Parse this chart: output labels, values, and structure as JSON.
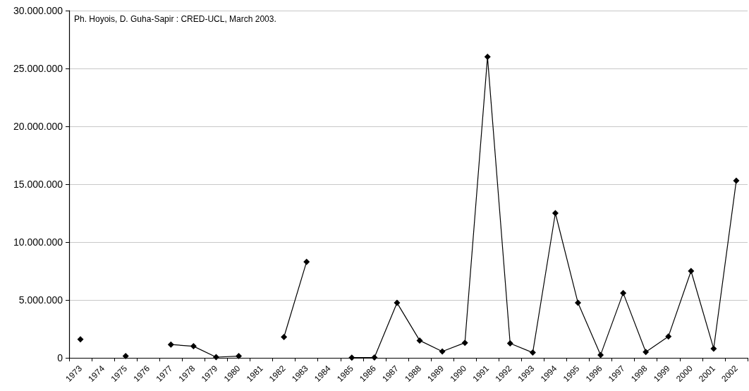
{
  "chart_data": {
    "type": "line",
    "annotations": [
      "Ph. Hoyois, D. Guha-Sapir : CRED-UCL, March 2003."
    ],
    "categories": [
      "1973",
      "1974",
      "1975",
      "1976",
      "1977",
      "1978",
      "1979",
      "1980",
      "1981",
      "1982",
      "1983",
      "1984",
      "1985",
      "1986",
      "1987",
      "1988",
      "1989",
      "1990",
      "1991",
      "1992",
      "1993",
      "1994",
      "1995",
      "1996",
      "1997",
      "1998",
      "1999",
      "2000",
      "2001",
      "2002"
    ],
    "values": [
      1600000,
      null,
      150000,
      null,
      1150000,
      1000000,
      60000,
      150000,
      null,
      1800000,
      8300000,
      null,
      20000,
      30000,
      4750000,
      1500000,
      550000,
      1300000,
      26000000,
      1250000,
      450000,
      12500000,
      4750000,
      250000,
      5600000,
      500000,
      1850000,
      7500000,
      800000,
      15300000
    ],
    "color": "#000000",
    "ylim": [
      0,
      30000000
    ],
    "yticks": [
      0,
      {
        "value": 5000000,
        "label": "5.000.000"
      },
      {
        "value": 10000000,
        "label": "10.000.000"
      },
      {
        "value": 15000000,
        "label": "15.000.000"
      },
      {
        "value": 20000000,
        "label": "20.000.000"
      },
      {
        "value": 25000000,
        "label": "25.000.000"
      },
      {
        "value": 30000000,
        "label": "30.000.000"
      }
    ],
    "grid": "y",
    "marker": "diamond"
  }
}
